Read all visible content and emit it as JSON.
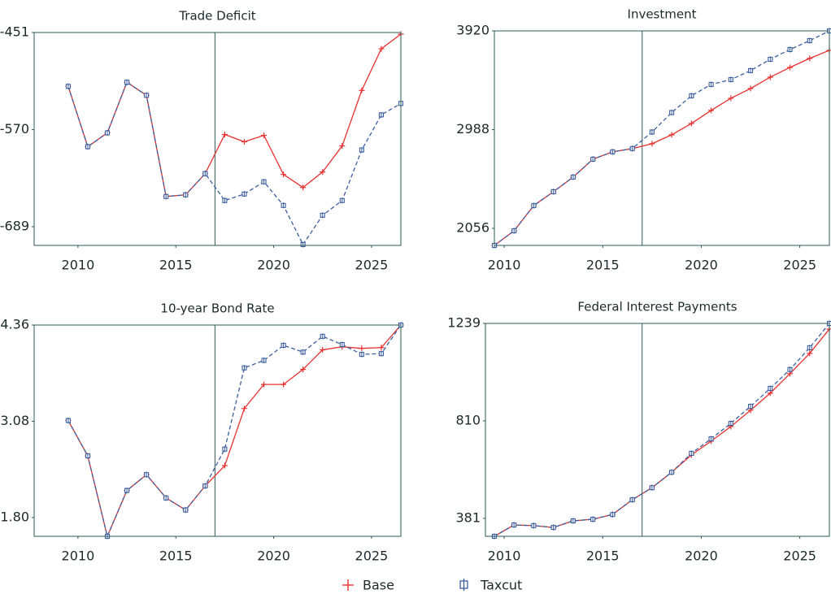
{
  "chart_data": [
    {
      "type": "line",
      "title": "Trade Deficit",
      "x": [
        2009.5,
        2010.5,
        2011.5,
        2012.5,
        2013.5,
        2014.5,
        2015.5,
        2016.5,
        2017.5,
        2018.5,
        2019.5,
        2020.5,
        2021.5,
        2022.5,
        2023.5,
        2024.5,
        2025.5,
        2026.5
      ],
      "xlim": [
        2007.76,
        2026.5
      ],
      "xticks": [
        2010,
        2015,
        2020,
        2025
      ],
      "ylim": [
        -712,
        -451
      ],
      "yticks": [
        -451,
        -570,
        -689
      ],
      "vline": 2017,
      "series": [
        {
          "name": "Base",
          "color": "#e8312f",
          "values": [
            -517,
            -591,
            -574,
            -512,
            -528,
            -652,
            -650,
            -624,
            -576,
            -585,
            -577,
            -625,
            -641,
            -622,
            -590,
            -522,
            -471,
            -453
          ]
        },
        {
          "name": "Taxcut",
          "color": "#3a5fa0",
          "values": [
            -517,
            -591,
            -574,
            -512,
            -528,
            -652,
            -650,
            -624,
            -657,
            -649,
            -634,
            -663,
            -711,
            -675,
            -657,
            -595,
            -552,
            -538
          ]
        }
      ]
    },
    {
      "type": "line",
      "title": "Investment",
      "x": [
        2009.5,
        2010.5,
        2011.5,
        2012.5,
        2013.5,
        2014.5,
        2015.5,
        2016.5,
        2017.5,
        2018.5,
        2019.5,
        2020.5,
        2021.5,
        2022.5,
        2023.5,
        2024.5,
        2025.5,
        2026.5
      ],
      "xlim": [
        2009.5,
        2026.5
      ],
      "xticks": [
        2010,
        2015,
        2020,
        2025
      ],
      "ylim": [
        1895,
        3920
      ],
      "yticks": [
        3920,
        2988,
        2056
      ],
      "vline": 2017,
      "series": [
        {
          "name": "Base",
          "color": "#e8312f",
          "values": [
            1895,
            2033,
            2271,
            2402,
            2540,
            2709,
            2778,
            2809,
            2855,
            2939,
            3046,
            3169,
            3284,
            3376,
            3483,
            3575,
            3660,
            3736
          ]
        },
        {
          "name": "Taxcut",
          "color": "#3a5fa0",
          "values": [
            1895,
            2033,
            2271,
            2402,
            2540,
            2709,
            2778,
            2809,
            2965,
            3149,
            3307,
            3414,
            3460,
            3545,
            3652,
            3744,
            3828,
            3920
          ]
        }
      ]
    },
    {
      "type": "line",
      "title": "10-year Bond Rate",
      "x": [
        2009.5,
        2010.5,
        2011.5,
        2012.5,
        2013.5,
        2014.5,
        2015.5,
        2016.5,
        2017.5,
        2018.5,
        2019.5,
        2020.5,
        2021.5,
        2022.5,
        2023.5,
        2024.5,
        2025.5,
        2026.5
      ],
      "xlim": [
        2007.76,
        2026.5
      ],
      "xticks": [
        2010,
        2015,
        2020,
        2025
      ],
      "ylim": [
        1.55,
        4.36
      ],
      "yticks": [
        4.36,
        3.08,
        {
          "value": 1.8,
          "label": "1.80"
        }
      ],
      "vline": 2017,
      "series": [
        {
          "name": "Base",
          "color": "#e8312f",
          "values": [
            3.09,
            2.62,
            1.55,
            2.16,
            2.37,
            2.06,
            1.9,
            2.22,
            2.49,
            3.25,
            3.57,
            3.57,
            3.77,
            4.03,
            4.07,
            4.05,
            4.06,
            4.36
          ]
        },
        {
          "name": "Taxcut",
          "color": "#3a5fa0",
          "values": [
            3.09,
            2.62,
            1.55,
            2.16,
            2.37,
            2.06,
            1.9,
            2.22,
            2.71,
            3.79,
            3.89,
            4.09,
            4.0,
            4.21,
            4.1,
            3.97,
            3.98,
            4.36
          ]
        }
      ]
    },
    {
      "type": "line",
      "title": "Federal Interest Payments",
      "x": [
        2009.5,
        2010.5,
        2011.5,
        2012.5,
        2013.5,
        2014.5,
        2015.5,
        2016.5,
        2017.5,
        2018.5,
        2019.5,
        2020.5,
        2021.5,
        2022.5,
        2023.5,
        2024.5,
        2025.5,
        2026.5
      ],
      "xlim": [
        2009.05,
        2026.5
      ],
      "xticks": [
        2010,
        2015,
        2020,
        2025
      ],
      "ylim": [
        302,
        1239
      ],
      "yticks": [
        1239,
        810,
        381
      ],
      "vline": 2017,
      "series": [
        {
          "name": "Base",
          "color": "#e8312f",
          "values": [
            302,
            352,
            349,
            341,
            370,
            377,
            398,
            463,
            516,
            584,
            660,
            721,
            785,
            857,
            932,
            1018,
            1107,
            1214
          ]
        },
        {
          "name": "Taxcut",
          "color": "#3a5fa0",
          "values": [
            302,
            352,
            349,
            341,
            370,
            377,
            398,
            463,
            516,
            584,
            667,
            731,
            799,
            874,
            953,
            1036,
            1132,
            1239
          ]
        }
      ]
    }
  ]
}
